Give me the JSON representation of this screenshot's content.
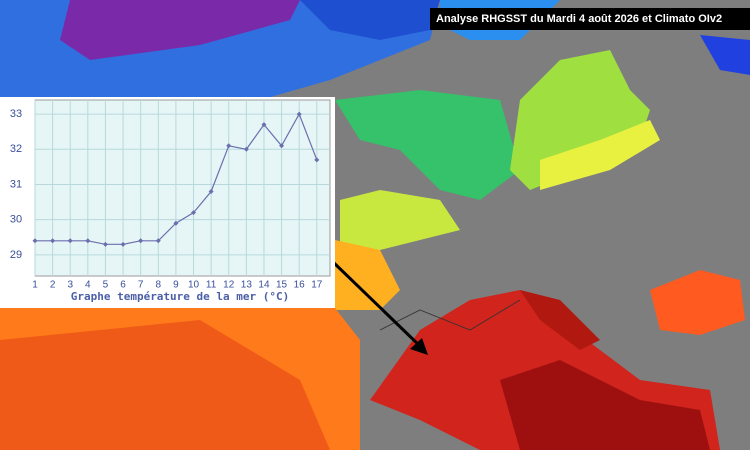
{
  "map": {
    "title": "Analyse RHGSST  du Mardi 4 août 2026 et Climato OIv2"
  },
  "chart_data": {
    "type": "line",
    "xlabel": "Graphe température de la mer (°C)",
    "x": [
      1,
      2,
      3,
      4,
      5,
      6,
      7,
      8,
      9,
      10,
      11,
      12,
      13,
      14,
      15,
      16,
      17
    ],
    "values": [
      29.4,
      29.4,
      29.4,
      29.4,
      29.3,
      29.3,
      29.4,
      29.4,
      29.9,
      30.2,
      30.8,
      32.1,
      32.0,
      32.7,
      32.1,
      33.0,
      31.7
    ],
    "color": "#6b6fae",
    "xlim": [
      1,
      17.75
    ],
    "ylim": [
      28.4,
      33.4
    ],
    "xticks": [
      1,
      2,
      3,
      4,
      5,
      6,
      7,
      8,
      9,
      10,
      11,
      12,
      13,
      14,
      15,
      16,
      17
    ],
    "yticks": [
      29,
      30,
      31,
      32,
      33
    ],
    "grid": true
  }
}
